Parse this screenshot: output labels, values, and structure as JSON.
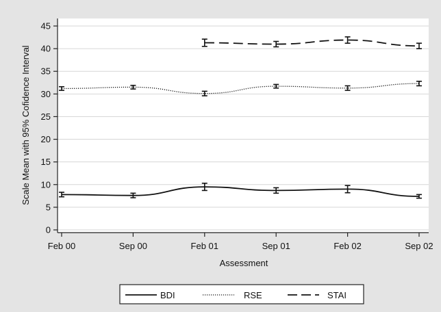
{
  "chart_data": {
    "type": "line",
    "xlabel": "Assessment",
    "ylabel": "Scale Mean with 95% Cofidence Interval",
    "ylim": [
      0,
      45
    ],
    "yticks": [
      0,
      5,
      10,
      15,
      20,
      25,
      30,
      35,
      40,
      45
    ],
    "categories": [
      "Feb 00",
      "Sep 00",
      "Feb 01",
      "Sep 01",
      "Feb 02",
      "Sep 02"
    ],
    "grid": true,
    "legend_position": "bottom",
    "series": [
      {
        "name": "BDI",
        "style": "solid",
        "values": [
          7.8,
          7.6,
          9.5,
          8.7,
          9.0,
          7.4
        ],
        "error": [
          0.5,
          0.5,
          0.8,
          0.6,
          0.8,
          0.4
        ]
      },
      {
        "name": "RSE",
        "style": "dotted",
        "values": [
          31.2,
          31.5,
          30.1,
          31.7,
          31.3,
          32.3
        ],
        "error": [
          0.4,
          0.4,
          0.5,
          0.4,
          0.5,
          0.5
        ]
      },
      {
        "name": "STAI",
        "style": "dashed",
        "values": [
          null,
          null,
          41.3,
          41.0,
          41.9,
          40.6
        ],
        "error": [
          null,
          null,
          0.8,
          0.6,
          0.7,
          0.6
        ]
      }
    ]
  }
}
